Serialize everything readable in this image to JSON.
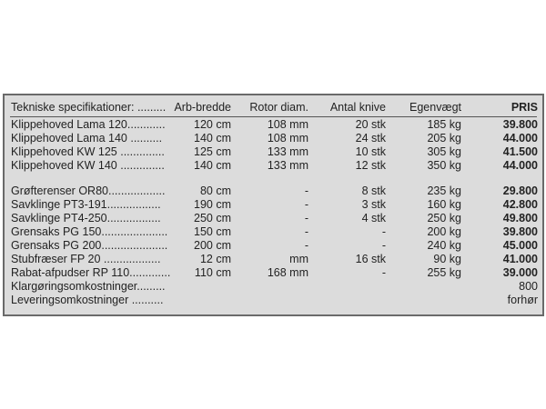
{
  "table": {
    "header": [
      "Tekniske specifikationer: .........",
      "Arb-bredde",
      "Rotor diam.",
      "Antal knive",
      "Egenvægt",
      "PRIS"
    ],
    "groups": [
      [
        {
          "name": "Klippehoved Lama 120............",
          "width": "120 cm",
          "rotor": "108 mm",
          "knives": "20 stk",
          "weight": "185 kg",
          "price": "39.800"
        },
        {
          "name": "Klippehoved Lama 140 ..........",
          "width": "140 cm",
          "rotor": "108 mm",
          "knives": "24 stk",
          "weight": "205 kg",
          "price": "44.000"
        },
        {
          "name": "Klippehoved KW 125 ..............",
          "width": "125 cm",
          "rotor": "133 mm",
          "knives": "10 stk",
          "weight": "305 kg",
          "price": "41.500"
        },
        {
          "name": "Klippehoved KW 140 ..............",
          "width": "140 cm",
          "rotor": "133 mm",
          "knives": "12 stk",
          "weight": "350 kg",
          "price": "44.000"
        }
      ],
      [
        {
          "name": "Grøfterenser OR80..................",
          "width": "80 cm",
          "rotor": "-",
          "knives": "8 stk",
          "weight": "235 kg",
          "price": "29.800"
        },
        {
          "name": "Savklinge PT3-191.................",
          "width": "190 cm",
          "rotor": "-",
          "knives": "3 stk",
          "weight": "160 kg",
          "price": "42.800"
        },
        {
          "name": "Savklinge PT4-250.................",
          "width": "250 cm",
          "rotor": "-",
          "knives": "4 stk",
          "weight": "250 kg",
          "price": "49.800"
        },
        {
          "name": "Grensaks PG 150.....................",
          "width": "150 cm",
          "rotor": "-",
          "knives": "-",
          "weight": "200 kg",
          "price": "39.800"
        },
        {
          "name": "Grensaks PG 200.....................",
          "width": "200 cm",
          "rotor": "-",
          "knives": "-",
          "weight": "240 kg",
          "price": "45.000"
        },
        {
          "name": "Stubfræser FP 20 ..................",
          "width": "12 cm",
          "rotor": "mm",
          "knives": "16 stk",
          "weight": "90 kg",
          "price": "41.000"
        },
        {
          "name": "Rabat-afpudser RP 110.............",
          "width": "110 cm",
          "rotor": "168 mm",
          "knives": "-",
          "weight": "255 kg",
          "price": "39.000"
        }
      ]
    ],
    "costs": [
      {
        "name": "Klargøringsomkostninger.........",
        "price": "800"
      },
      {
        "name": "Leveringsomkostninger ..........",
        "price": "forhør"
      }
    ]
  }
}
